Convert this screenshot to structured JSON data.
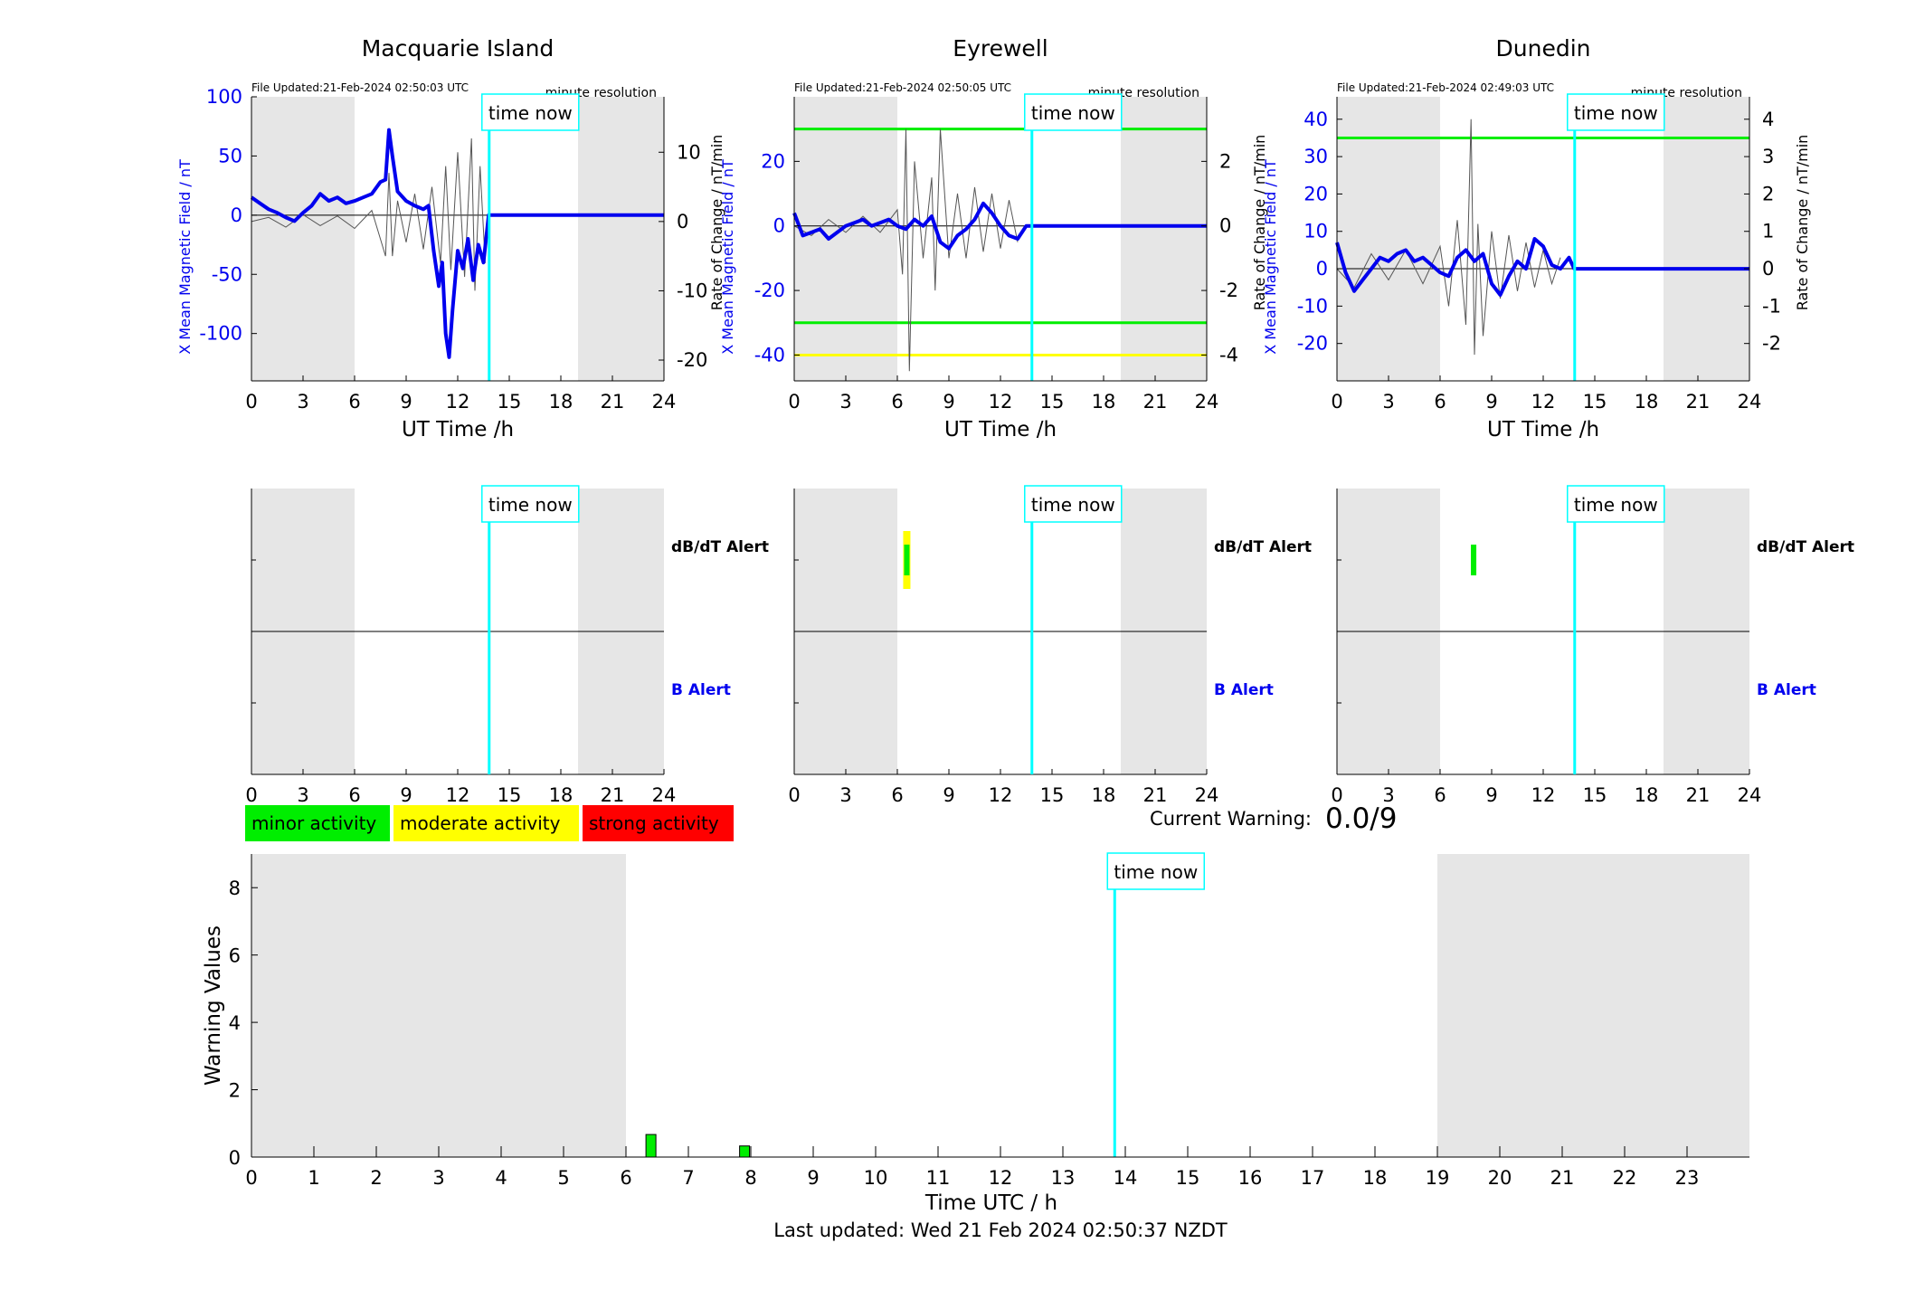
{
  "page": {
    "last_updated": "Last updated: Wed 21 Feb 2024 02:50:37 NZDT",
    "current_warning_label": "Current Warning:",
    "current_warning_value": "0.0/9",
    "time_now_label": "time now",
    "dbdt_alert_label": "dB/dT Alert",
    "b_alert_label": "B Alert"
  },
  "legend": {
    "items": [
      {
        "label": "minor activity",
        "color": "#00ee00"
      },
      {
        "label": "moderate activity",
        "color": "#ffff00"
      },
      {
        "label": "strong activity",
        "color": "#ff0000"
      }
    ]
  },
  "colors": {
    "field": "#0000ee",
    "rate": "#555555",
    "now_line": "#00ffff",
    "threshold_green": "#00ee00",
    "threshold_yellow": "#ffff00",
    "night_shade": "#e6e6e6"
  },
  "chart_data": [
    {
      "type": "line",
      "title": "Macquarie Island",
      "file_updated": "File Updated:21-Feb-2024 02:50:03 UTC",
      "resolution": "minute resolution",
      "xlabel": "UT Time /h",
      "ylabel": "X Mean Magnetic Field / nT",
      "ylabel_right": "Rate of Change / nT/min",
      "xlim": [
        0,
        24
      ],
      "xticks": [
        0,
        3,
        6,
        9,
        12,
        15,
        18,
        21,
        24
      ],
      "ylim": [
        -140,
        100
      ],
      "yticks": [
        -100,
        -50,
        0,
        50,
        100
      ],
      "ylim_right": [
        -23,
        18
      ],
      "yticks_right": [
        -20,
        -10,
        0,
        10
      ],
      "now_hour": 13.83,
      "night_shading": [
        [
          0,
          6
        ],
        [
          19,
          24
        ]
      ],
      "thresholds": [],
      "field": {
        "x": [
          0,
          0.5,
          1,
          1.5,
          2,
          2.5,
          3,
          3.5,
          4,
          4.5,
          5,
          5.5,
          6,
          6.5,
          7,
          7.5,
          7.8,
          8,
          8.2,
          8.5,
          9,
          9.5,
          10,
          10.3,
          10.6,
          10.9,
          11.1,
          11.3,
          11.5,
          11.7,
          12,
          12.3,
          12.6,
          12.9,
          13.2,
          13.5,
          13.8,
          24
        ],
        "y": [
          15,
          10,
          5,
          2,
          -2,
          -5,
          2,
          8,
          18,
          12,
          15,
          10,
          12,
          15,
          18,
          28,
          30,
          72,
          50,
          20,
          12,
          8,
          5,
          8,
          -30,
          -60,
          -40,
          -100,
          -120,
          -80,
          -30,
          -45,
          -20,
          -55,
          -25,
          -40,
          0,
          0
        ]
      },
      "rate": {
        "x": [
          0,
          1,
          2,
          3,
          4,
          5,
          6,
          7,
          7.5,
          7.8,
          8,
          8.2,
          8.5,
          9,
          9.5,
          10,
          10.5,
          11,
          11.3,
          11.6,
          12,
          12.4,
          12.8,
          13,
          13.3,
          13.6
        ],
        "y": [
          0,
          0.6,
          -0.8,
          1,
          -0.6,
          0.8,
          -1,
          1.6,
          -2.5,
          -5,
          7,
          -5,
          3,
          -3,
          4,
          -4,
          5,
          -6,
          8,
          -7,
          10,
          -8,
          12,
          -10,
          8,
          -6
        ]
      },
      "alerts": {
        "dbdt": [],
        "b": []
      }
    },
    {
      "type": "line",
      "title": "Eyrewell",
      "file_updated": "File Updated:21-Feb-2024 02:50:05 UTC",
      "resolution": "minute resolution",
      "xlabel": "UT Time /h",
      "ylabel": "X Mean Magnetic Field / nT",
      "ylabel_right": "Rate of Change / nT/min",
      "xlim": [
        0,
        24
      ],
      "xticks": [
        0,
        3,
        6,
        9,
        12,
        15,
        18,
        21,
        24
      ],
      "ylim": [
        -48,
        40
      ],
      "yticks": [
        -40,
        -20,
        0,
        20
      ],
      "ylim_right": [
        -4.8,
        4.0
      ],
      "yticks_right": [
        -4,
        -2,
        0,
        2
      ],
      "now_hour": 13.83,
      "night_shading": [
        [
          0,
          6
        ],
        [
          19,
          24
        ]
      ],
      "thresholds": [
        {
          "axis": "right",
          "value": 3,
          "color": "green"
        },
        {
          "axis": "right",
          "value": -3,
          "color": "green"
        },
        {
          "axis": "right",
          "value": -4,
          "color": "yellow"
        }
      ],
      "field": {
        "x": [
          0,
          0.5,
          1,
          1.5,
          2,
          2.5,
          3,
          3.5,
          4,
          4.5,
          5,
          5.5,
          6,
          6.5,
          7,
          7.5,
          8,
          8.5,
          9,
          9.5,
          10,
          10.5,
          11,
          11.5,
          12,
          12.5,
          13,
          13.5,
          13.8,
          24
        ],
        "y": [
          4,
          -3,
          -2,
          -1,
          -4,
          -2,
          0,
          1,
          2,
          0,
          1,
          2,
          0,
          -1,
          2,
          0,
          3,
          -5,
          -7,
          -3,
          -1,
          2,
          7,
          4,
          0,
          -3,
          -4,
          0,
          0,
          0
        ]
      },
      "rate": {
        "x": [
          0,
          1,
          2,
          3,
          4,
          5,
          6,
          6.3,
          6.5,
          6.7,
          7,
          7.5,
          8,
          8.2,
          8.5,
          9,
          9.5,
          10,
          10.5,
          11,
          11.5,
          12,
          12.5,
          13
        ],
        "y": [
          0,
          -0.3,
          0.2,
          -0.2,
          0.3,
          -0.2,
          0.5,
          -1.5,
          3,
          -4.5,
          2,
          -1,
          1.5,
          -2,
          3,
          -1,
          1,
          -1,
          1.2,
          -0.8,
          1,
          -0.7,
          0.8,
          -0.5
        ]
      },
      "alerts": {
        "dbdt": [
          {
            "start": 6.4,
            "end": 6.7,
            "level": "yellow"
          },
          {
            "start": 6.45,
            "end": 6.65,
            "level": "green"
          }
        ],
        "b": []
      }
    },
    {
      "type": "line",
      "title": "Dunedin",
      "file_updated": "File Updated:21-Feb-2024 02:49:03 UTC",
      "resolution": "minute resolution",
      "xlabel": "UT Time /h",
      "ylabel": "X Mean Magnetic Field / nT",
      "ylabel_right": "Rate of Change / nT/min",
      "xlim": [
        0,
        24
      ],
      "xticks": [
        0,
        3,
        6,
        9,
        12,
        15,
        18,
        21,
        24
      ],
      "ylim": [
        -30,
        46
      ],
      "yticks": [
        -20,
        -10,
        0,
        10,
        20,
        30,
        40
      ],
      "ylim_right": [
        -3.0,
        4.6
      ],
      "yticks_right": [
        -2,
        -1,
        0,
        1,
        2,
        3,
        4
      ],
      "now_hour": 13.83,
      "night_shading": [
        [
          0,
          6
        ],
        [
          19,
          24
        ]
      ],
      "thresholds": [
        {
          "axis": "right",
          "value": 3.5,
          "color": "green"
        }
      ],
      "field": {
        "x": [
          0,
          0.5,
          1,
          1.5,
          2,
          2.5,
          3,
          3.5,
          4,
          4.5,
          5,
          5.5,
          6,
          6.5,
          7,
          7.5,
          8,
          8.5,
          9,
          9.5,
          10,
          10.5,
          11,
          11.5,
          12,
          12.5,
          13,
          13.5,
          13.8,
          24
        ],
        "y": [
          7,
          -1,
          -6,
          -3,
          0,
          3,
          2,
          4,
          5,
          2,
          3,
          1,
          -1,
          -2,
          3,
          5,
          2,
          4,
          -4,
          -7,
          -2,
          2,
          0,
          8,
          6,
          1,
          0,
          3,
          0,
          0
        ]
      },
      "rate": {
        "x": [
          0,
          1,
          2,
          3,
          4,
          5,
          6,
          6.5,
          7,
          7.5,
          7.8,
          8,
          8.2,
          8.5,
          9,
          9.5,
          10,
          10.5,
          11,
          11.5,
          12,
          12.5,
          13
        ],
        "y": [
          0,
          -0.5,
          0.4,
          -0.3,
          0.5,
          -0.4,
          0.6,
          -1,
          1.3,
          -1.5,
          4,
          -2.3,
          1.2,
          -1.8,
          1,
          -0.8,
          0.9,
          -0.6,
          0.7,
          -0.5,
          0.5,
          -0.4,
          0.3
        ]
      },
      "alerts": {
        "dbdt": [
          {
            "start": 7.8,
            "end": 8.1,
            "level": "green"
          }
        ],
        "b": []
      }
    },
    {
      "type": "bar",
      "title": "",
      "xlabel": "Time UTC / h",
      "ylabel": "Warning Values",
      "xlim": [
        0,
        24
      ],
      "xticks": [
        0,
        1,
        2,
        3,
        4,
        5,
        6,
        7,
        8,
        9,
        10,
        11,
        12,
        13,
        14,
        15,
        16,
        17,
        18,
        19,
        20,
        21,
        22,
        23
      ],
      "ylim": [
        0,
        9
      ],
      "yticks": [
        0,
        2,
        4,
        6,
        8
      ],
      "now_hour": 13.83,
      "night_shading": [
        [
          0,
          6
        ],
        [
          19,
          24
        ]
      ],
      "bars": [
        {
          "hour": 6.4,
          "value": 0.67,
          "level": "green"
        },
        {
          "hour": 7.9,
          "value": 0.33,
          "level": "green"
        }
      ]
    }
  ]
}
